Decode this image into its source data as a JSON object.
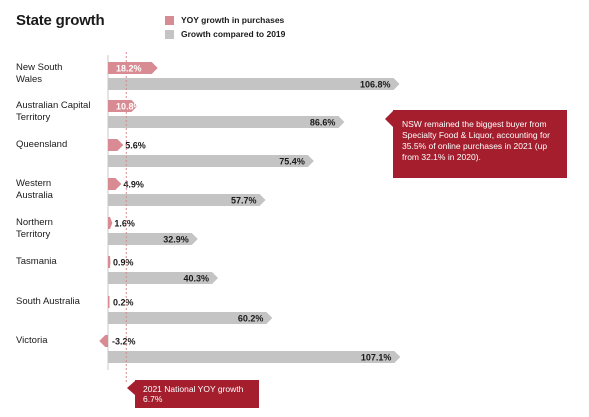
{
  "colors": {
    "yoy": "#d98b93",
    "growth2019": "#c4c4c4",
    "accent": "#a41e2d",
    "refline": "#d98b93"
  },
  "chart_data": {
    "type": "bar",
    "orientation": "horizontal",
    "title": "State growth",
    "categories": [
      "New South Wales",
      "Australian Capital Territory",
      "Queensland",
      "Western Australia",
      "Northern Territory",
      "Tasmania",
      "South Australia",
      "Victoria"
    ],
    "category_lines": [
      [
        "New South",
        "Wales"
      ],
      [
        "Australian Capital",
        "Territory"
      ],
      [
        "Queensland"
      ],
      [
        "Western",
        "Australia"
      ],
      [
        "Northern",
        "Territory"
      ],
      [
        "Tasmania"
      ],
      [
        "South Australia"
      ],
      [
        "Victoria"
      ]
    ],
    "series": [
      {
        "name": "YOY growth in purchases",
        "values": [
          18.2,
          10.8,
          5.6,
          4.9,
          1.6,
          0.9,
          0.2,
          -3.2
        ],
        "labels": [
          "18.2%",
          "10.8%",
          "5.6%",
          "4.9%",
          "1.6%",
          "0.9%",
          "0.2%",
          "-3.2%"
        ]
      },
      {
        "name": "Growth compared to 2019",
        "values": [
          106.8,
          86.6,
          75.4,
          57.7,
          32.9,
          40.3,
          60.2,
          107.1
        ],
        "labels": [
          "106.8%",
          "86.6%",
          "75.4%",
          "57.7%",
          "32.9%",
          "40.3%",
          "60.2%",
          "107.1%"
        ]
      }
    ],
    "reference_line": {
      "value": 6.7,
      "label_line1": "2021 National YOY growth",
      "label_line2": "6.7%"
    },
    "annotations": [
      "NSW remained the biggest buyer from Specialty Food & Liquor, accounting for 35.5% of online purchases in 2021 (up from 32.1% in 2020)."
    ],
    "legend": "top",
    "grid": false
  }
}
